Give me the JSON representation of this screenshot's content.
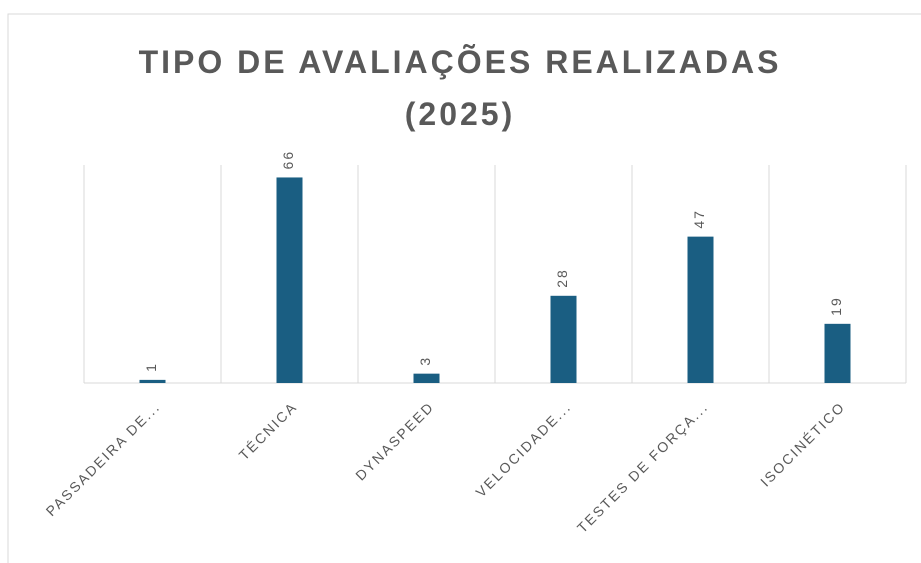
{
  "chart_data": {
    "type": "bar",
    "title": "TIPO DE AVALIAÇÕES REALIZADAS (2025)",
    "categories": [
      "PASSADEIRA DE...",
      "TÉCNICA",
      "DYNASPEED",
      "VELOCIDADE...",
      "TESTES DE FORÇA...",
      "ISOCINÉTICO"
    ],
    "values": [
      1,
      66,
      3,
      28,
      47,
      19
    ],
    "color": "#1a5e82",
    "ylim": [
      0,
      70
    ],
    "category_gridlines": true
  }
}
